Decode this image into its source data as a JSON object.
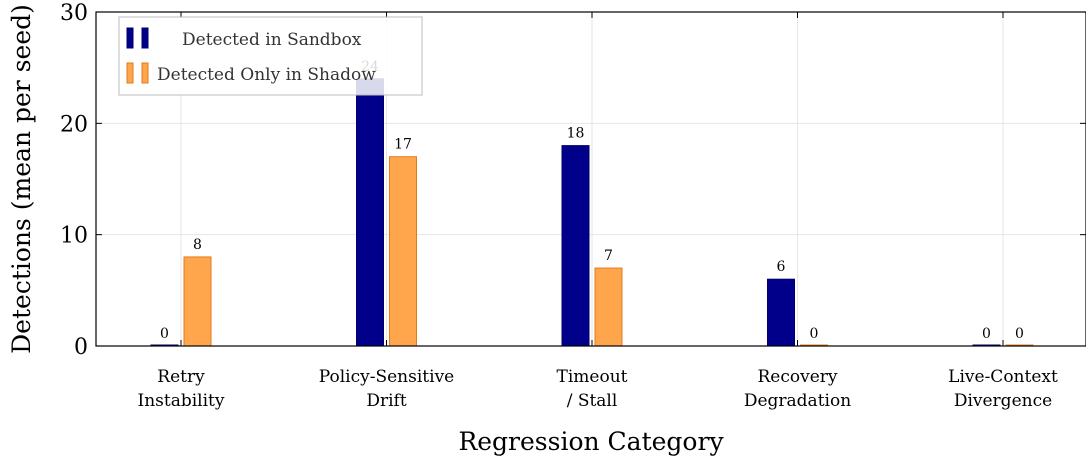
{
  "chart_data": {
    "type": "bar",
    "title": "",
    "xlabel": "Regression Category",
    "ylabel": "Detections (mean per seed)",
    "ylim": [
      0,
      30
    ],
    "yticks": [
      0,
      10,
      20,
      30
    ],
    "grid": true,
    "legend_position": "top-left",
    "categories": [
      [
        "Retry",
        "Instability"
      ],
      [
        "Policy-Sensitive",
        "Drift"
      ],
      [
        "Timeout",
        "/ Stall"
      ],
      [
        "Recovery",
        "Degradation"
      ],
      [
        "Live-Context",
        "Divergence"
      ]
    ],
    "series": [
      {
        "name": "Detected in Sandbox",
        "values": [
          0,
          24,
          18,
          6,
          0
        ],
        "color": "#00008b",
        "stroke": "#00006b"
      },
      {
        "name": "Detected Only in Shadow",
        "values": [
          8,
          17,
          7,
          0,
          0
        ],
        "color": "#ffa64d",
        "stroke": "#e07b1a"
      }
    ]
  }
}
